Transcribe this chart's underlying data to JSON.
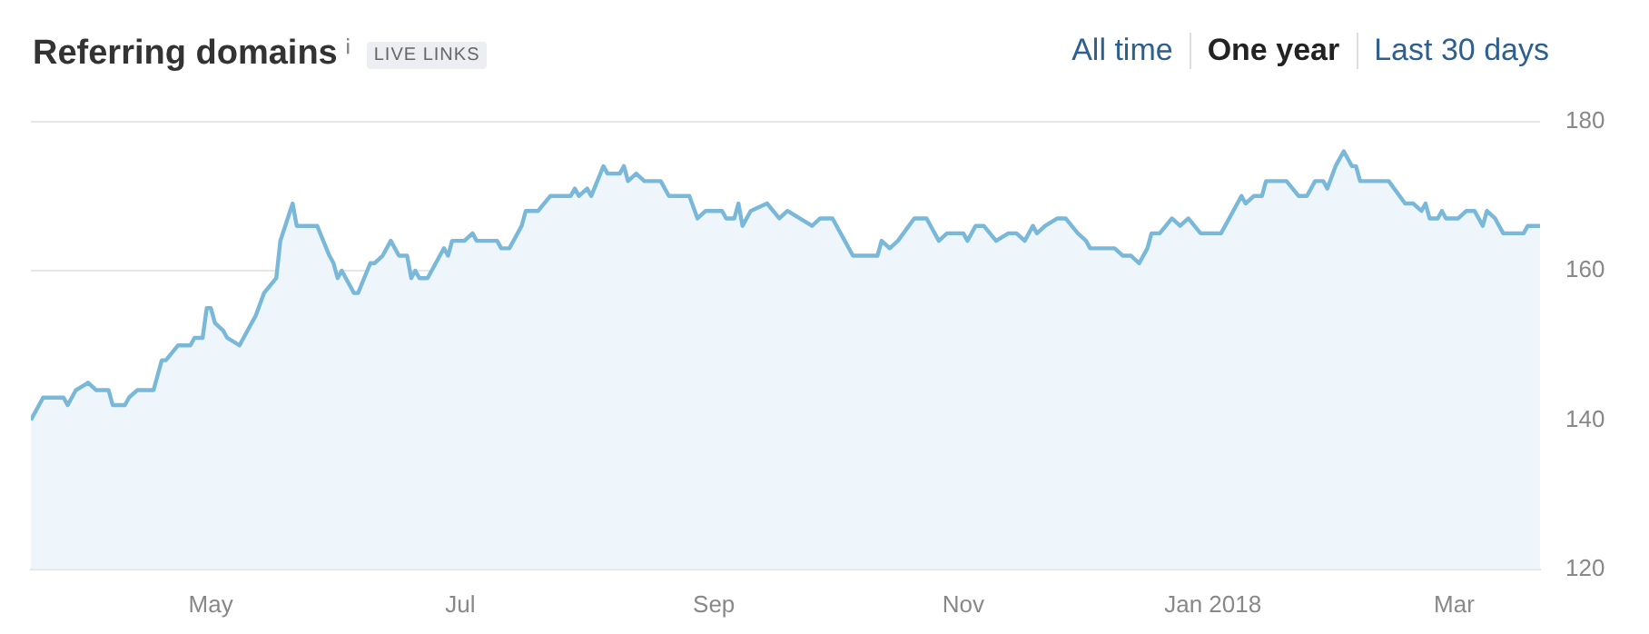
{
  "chart_data": {
    "type": "area",
    "title": "Referring domains",
    "annotations": [
      "LIVE LINKS",
      "All time",
      "One year",
      "Last 30 days"
    ],
    "x": [
      "2017-03-18",
      "2017-03-21",
      "2017-03-26",
      "2017-03-27",
      "2017-03-29",
      "2017-04-01",
      "2017-04-03",
      "2017-04-06",
      "2017-04-07",
      "2017-04-10",
      "2017-04-11",
      "2017-04-13",
      "2017-04-17",
      "2017-04-19",
      "2017-04-20",
      "2017-04-23",
      "2017-04-26",
      "2017-04-27",
      "2017-04-29",
      "2017-04-30",
      "2017-05-01",
      "2017-05-02",
      "2017-05-04",
      "2017-05-05",
      "2017-05-08",
      "2017-05-10",
      "2017-05-12",
      "2017-05-14",
      "2017-05-17",
      "2017-05-18",
      "2017-05-21",
      "2017-05-22",
      "2017-05-27",
      "2017-05-30",
      "2017-05-31",
      "2017-06-01",
      "2017-06-02",
      "2017-06-05",
      "2017-06-06",
      "2017-06-09",
      "2017-06-10",
      "2017-06-12",
      "2017-06-14",
      "2017-06-16",
      "2017-06-18",
      "2017-06-19",
      "2017-06-20",
      "2017-06-21",
      "2017-06-23",
      "2017-06-26",
      "2017-06-27",
      "2017-06-28",
      "2017-06-29",
      "2017-07-02",
      "2017-07-04",
      "2017-07-05",
      "2017-07-10",
      "2017-07-11",
      "2017-07-13",
      "2017-07-16",
      "2017-07-17",
      "2017-07-20",
      "2017-07-23",
      "2017-07-28",
      "2017-07-29",
      "2017-07-30",
      "2017-08-01",
      "2017-08-02",
      "2017-08-05",
      "2017-08-06",
      "2017-08-09",
      "2017-08-10",
      "2017-08-11",
      "2017-08-13",
      "2017-08-15",
      "2017-08-19",
      "2017-08-21",
      "2017-08-26",
      "2017-08-28",
      "2017-08-30",
      "2017-09-03",
      "2017-09-04",
      "2017-09-06",
      "2017-09-07",
      "2017-09-08",
      "2017-09-10",
      "2017-09-14",
      "2017-09-17",
      "2017-09-19",
      "2017-09-22",
      "2017-09-25",
      "2017-09-27",
      "2017-09-30",
      "2017-10-02",
      "2017-10-05",
      "2017-10-11",
      "2017-10-12",
      "2017-10-14",
      "2017-10-16",
      "2017-10-20",
      "2017-10-23",
      "2017-10-26",
      "2017-10-28",
      "2017-11-01",
      "2017-11-02",
      "2017-11-04",
      "2017-11-06",
      "2017-11-09",
      "2017-11-12",
      "2017-11-14",
      "2017-11-16",
      "2017-11-18",
      "2017-11-19",
      "2017-11-21",
      "2017-11-24",
      "2017-11-26",
      "2017-11-29",
      "2017-12-01",
      "2017-12-02",
      "2017-12-04",
      "2017-12-08",
      "2017-12-10",
      "2017-12-12",
      "2017-12-14",
      "2017-12-16",
      "2017-12-17",
      "2017-12-19",
      "2017-12-22",
      "2017-12-24",
      "2017-12-26",
      "2017-12-29",
      "2018-01-03",
      "2018-01-06",
      "2018-01-08",
      "2018-01-09",
      "2018-01-11",
      "2018-01-13",
      "2018-01-14",
      "2018-01-19",
      "2018-01-22",
      "2018-01-24",
      "2018-01-26",
      "2018-01-28",
      "2018-01-29",
      "2018-01-31",
      "2018-02-02",
      "2018-02-04",
      "2018-02-05",
      "2018-02-06",
      "2018-02-13",
      "2018-02-17",
      "2018-02-19",
      "2018-02-21",
      "2018-02-22",
      "2018-02-23",
      "2018-02-25",
      "2018-02-26",
      "2018-02-27",
      "2018-03-02",
      "2018-03-04",
      "2018-03-06",
      "2018-03-08",
      "2018-03-09",
      "2018-03-11",
      "2018-03-13",
      "2018-03-18",
      "2018-03-19",
      "2018-03-22"
    ],
    "series": [
      {
        "color": "#7ab8d9",
        "values": [
          140,
          143,
          143,
          142,
          144,
          145,
          144,
          144,
          142,
          142,
          143,
          144,
          144,
          148,
          148,
          150,
          150,
          151,
          151,
          155,
          155,
          153,
          152,
          151,
          150,
          152,
          154,
          157,
          159,
          164,
          169,
          166,
          166,
          162,
          161,
          159,
          160,
          157,
          157,
          161,
          161,
          162,
          164,
          162,
          162,
          159,
          160,
          159,
          159,
          162,
          163,
          162,
          164,
          164,
          165,
          164,
          164,
          163,
          163,
          166,
          168,
          168,
          170,
          170,
          171,
          170,
          171,
          170,
          174,
          173,
          173,
          174,
          172,
          173,
          172,
          172,
          170,
          170,
          167,
          168,
          168,
          167,
          167,
          169,
          166,
          168,
          169,
          167,
          168,
          167,
          166,
          167,
          167,
          165,
          162,
          162,
          164,
          163,
          164,
          167,
          167,
          164,
          165,
          165,
          164,
          166,
          166,
          164,
          165,
          165,
          164,
          166,
          165,
          166,
          167,
          167,
          165,
          164,
          163,
          163,
          163,
          162,
          162,
          161,
          163,
          165,
          165,
          167,
          166,
          167,
          165,
          165,
          168,
          170,
          169,
          170,
          170,
          172,
          172,
          170,
          170,
          172,
          172,
          171,
          174,
          176,
          174,
          174,
          172,
          172,
          169,
          169,
          168,
          169,
          167,
          167,
          168,
          167,
          167,
          168,
          168,
          166,
          168,
          167,
          165,
          165,
          166,
          166
        ]
      }
    ],
    "xlim": [
      "2017-03-18",
      "2018-03-22"
    ],
    "xticks": [
      {
        "value": "2017-05-01",
        "label": "May"
      },
      {
        "value": "2017-07-01",
        "label": "Jul"
      },
      {
        "value": "2017-09-01",
        "label": "Sep"
      },
      {
        "value": "2017-11-01",
        "label": "Nov"
      },
      {
        "value": "2018-01-01",
        "label": "Jan 2018"
      },
      {
        "value": "2018-03-01",
        "label": "Mar"
      }
    ],
    "ylim": [
      120,
      180
    ],
    "yticks": [
      120,
      140,
      160,
      180
    ],
    "grid": "y",
    "legend": false,
    "marker": "none",
    "line_style": "solid"
  }
}
